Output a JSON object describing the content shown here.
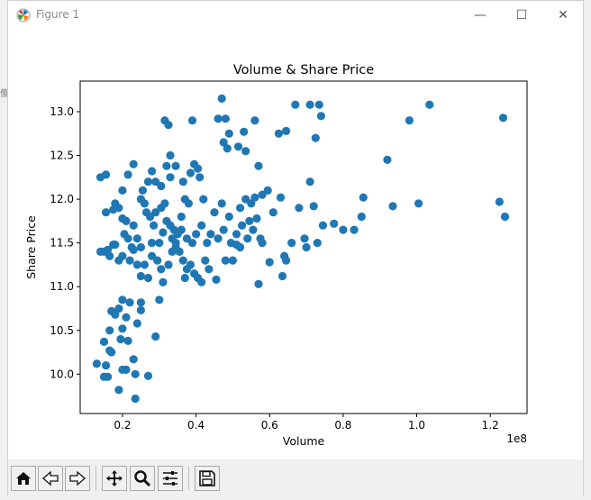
{
  "window": {
    "title": "Figure 1",
    "minimize_label": "—",
    "maximize_label": "☐",
    "close_label": "✕"
  },
  "edge_fragments": {
    "left_char": "傻"
  },
  "toolbar": {
    "buttons": [
      {
        "name": "home-button",
        "icon": "home-icon"
      },
      {
        "name": "back-button",
        "icon": "arrow-left-icon"
      },
      {
        "name": "forward-button",
        "icon": "arrow-right-icon"
      },
      {
        "name": "pan-button",
        "icon": "move-icon"
      },
      {
        "name": "zoom-button",
        "icon": "magnifier-icon"
      },
      {
        "name": "configure-subplots-button",
        "icon": "sliders-icon"
      },
      {
        "name": "save-button",
        "icon": "floppy-disk-icon"
      }
    ]
  },
  "colors": {
    "marker": "#1f77b4",
    "axes_bg": "#ffffff",
    "frame": "#000000"
  },
  "chart_data": {
    "type": "scatter",
    "title": "Volume & Share Price",
    "xlabel": "Volume",
    "ylabel": "Share Price",
    "x_offset_label": "1e8",
    "xlim": [
      8500000,
      130000000
    ],
    "ylim": [
      9.55,
      13.35
    ],
    "xticks": [
      20000000,
      40000000,
      60000000,
      80000000,
      100000000,
      120000000
    ],
    "xtick_labels": [
      "0.2",
      "0.4",
      "0.6",
      "0.8",
      "1.0",
      "1.2"
    ],
    "yticks": [
      10.0,
      10.5,
      11.0,
      11.5,
      12.0,
      12.5,
      13.0
    ],
    "ytick_labels": [
      "10.0",
      "10.5",
      "11.0",
      "11.5",
      "12.0",
      "12.5",
      "13.0"
    ],
    "grid": false,
    "points": [
      [
        13000000,
        10.12
      ],
      [
        15000000,
        9.97
      ],
      [
        16000000,
        9.97
      ],
      [
        15500000,
        10.1
      ],
      [
        15000000,
        10.37
      ],
      [
        16500000,
        10.27
      ],
      [
        17000000,
        10.25
      ],
      [
        16500000,
        10.5
      ],
      [
        17000000,
        10.72
      ],
      [
        18000000,
        10.68
      ],
      [
        19000000,
        10.75
      ],
      [
        19500000,
        10.4
      ],
      [
        19000000,
        9.82
      ],
      [
        20000000,
        10.05
      ],
      [
        21000000,
        10.05
      ],
      [
        20000000,
        10.52
      ],
      [
        21000000,
        10.65
      ],
      [
        21500000,
        10.38
      ],
      [
        22000000,
        10.82
      ],
      [
        20000000,
        10.85
      ],
      [
        23000000,
        10.17
      ],
      [
        23500000,
        10.0
      ],
      [
        23500000,
        9.72
      ],
      [
        24000000,
        10.58
      ],
      [
        25000000,
        10.82
      ],
      [
        25000000,
        10.73
      ],
      [
        27000000,
        9.98
      ],
      [
        29000000,
        10.43
      ],
      [
        25000000,
        11.12
      ],
      [
        24000000,
        11.25
      ],
      [
        22000000,
        11.3
      ],
      [
        23000000,
        11.42
      ],
      [
        20000000,
        11.35
      ],
      [
        19000000,
        11.3
      ],
      [
        18000000,
        11.48
      ],
      [
        17500000,
        11.48
      ],
      [
        16000000,
        11.42
      ],
      [
        15000000,
        11.4
      ],
      [
        16500000,
        11.35
      ],
      [
        14000000,
        11.4
      ],
      [
        20500000,
        11.6
      ],
      [
        21500000,
        11.55
      ],
      [
        22500000,
        11.45
      ],
      [
        24000000,
        11.55
      ],
      [
        25000000,
        11.45
      ],
      [
        23000000,
        11.7
      ],
      [
        21000000,
        11.75
      ],
      [
        20000000,
        11.78
      ],
      [
        19000000,
        11.9
      ],
      [
        18000000,
        11.95
      ],
      [
        17500000,
        11.88
      ],
      [
        15500000,
        11.85
      ],
      [
        14000000,
        12.25
      ],
      [
        15500000,
        12.28
      ],
      [
        20000000,
        12.1
      ],
      [
        21500000,
        12.28
      ],
      [
        23000000,
        12.4
      ],
      [
        25500000,
        12.1
      ],
      [
        25000000,
        12.0
      ],
      [
        26000000,
        11.95
      ],
      [
        27000000,
        12.2
      ],
      [
        28000000,
        12.32
      ],
      [
        29000000,
        12.2
      ],
      [
        30500000,
        12.15
      ],
      [
        32000000,
        12.38
      ],
      [
        33000000,
        12.5
      ],
      [
        33000000,
        12.25
      ],
      [
        34500000,
        12.38
      ],
      [
        31500000,
        12.9
      ],
      [
        32500000,
        12.85
      ],
      [
        26500000,
        11.85
      ],
      [
        27500000,
        11.8
      ],
      [
        28500000,
        11.7
      ],
      [
        29000000,
        11.85
      ],
      [
        30500000,
        11.9
      ],
      [
        31500000,
        11.95
      ],
      [
        32000000,
        11.75
      ],
      [
        33000000,
        11.7
      ],
      [
        34000000,
        11.65
      ],
      [
        35000000,
        11.6
      ],
      [
        36000000,
        11.8
      ],
      [
        37000000,
        12.0
      ],
      [
        38000000,
        11.95
      ],
      [
        36500000,
        12.2
      ],
      [
        38500000,
        12.3
      ],
      [
        39500000,
        12.4
      ],
      [
        40500000,
        12.35
      ],
      [
        39000000,
        12.9
      ],
      [
        41000000,
        12.25
      ],
      [
        42000000,
        12.0
      ],
      [
        28000000,
        11.35
      ],
      [
        29500000,
        11.3
      ],
      [
        30500000,
        11.2
      ],
      [
        31000000,
        11.05
      ],
      [
        32500000,
        11.25
      ],
      [
        33500000,
        11.4
      ],
      [
        34500000,
        11.45
      ],
      [
        35500000,
        11.4
      ],
      [
        36500000,
        11.3
      ],
      [
        37500000,
        11.2
      ],
      [
        37000000,
        11.1
      ],
      [
        38500000,
        11.25
      ],
      [
        39500000,
        11.15
      ],
      [
        40500000,
        11.1
      ],
      [
        41500000,
        11.05
      ],
      [
        42500000,
        11.3
      ],
      [
        43500000,
        11.2
      ],
      [
        45500000,
        11.08
      ],
      [
        30000000,
        10.85
      ],
      [
        27000000,
        11.1
      ],
      [
        26000000,
        11.25
      ],
      [
        28000000,
        11.5
      ],
      [
        30000000,
        11.5
      ],
      [
        31000000,
        11.62
      ],
      [
        33500000,
        11.55
      ],
      [
        34500000,
        11.5
      ],
      [
        36000000,
        11.65
      ],
      [
        37500000,
        11.55
      ],
      [
        39000000,
        11.5
      ],
      [
        40000000,
        11.6
      ],
      [
        41500000,
        11.7
      ],
      [
        43000000,
        11.5
      ],
      [
        44000000,
        11.6
      ],
      [
        46000000,
        11.55
      ],
      [
        47500000,
        11.65
      ],
      [
        48000000,
        11.3
      ],
      [
        49500000,
        11.5
      ],
      [
        45000000,
        11.85
      ],
      [
        47000000,
        11.95
      ],
      [
        49000000,
        11.8
      ],
      [
        51000000,
        11.6
      ],
      [
        52500000,
        11.7
      ],
      [
        52000000,
        11.9
      ],
      [
        53500000,
        12.0
      ],
      [
        55000000,
        11.95
      ],
      [
        56000000,
        12.02
      ],
      [
        54500000,
        11.75
      ],
      [
        56500000,
        11.78
      ],
      [
        57500000,
        11.55
      ],
      [
        58000000,
        11.5
      ],
      [
        57000000,
        11.03
      ],
      [
        60000000,
        11.28
      ],
      [
        63500000,
        11.12
      ],
      [
        64500000,
        11.3
      ],
      [
        66000000,
        11.5
      ],
      [
        58000000,
        12.05
      ],
      [
        59500000,
        12.1
      ],
      [
        61000000,
        11.85
      ],
      [
        63000000,
        12.02
      ],
      [
        64000000,
        11.35
      ],
      [
        52000000,
        11.45
      ],
      [
        50000000,
        11.3
      ],
      [
        51000000,
        11.48
      ],
      [
        54000000,
        11.55
      ],
      [
        55500000,
        11.65
      ],
      [
        48000000,
        12.92
      ],
      [
        49000000,
        12.75
      ],
      [
        47500000,
        12.65
      ],
      [
        48500000,
        12.58
      ],
      [
        51500000,
        12.6
      ],
      [
        53000000,
        12.77
      ],
      [
        53500000,
        12.55
      ],
      [
        57000000,
        12.38
      ],
      [
        56000000,
        12.9
      ],
      [
        46000000,
        12.92
      ],
      [
        47000000,
        13.15
      ],
      [
        62500000,
        12.75
      ],
      [
        64500000,
        12.78
      ],
      [
        67000000,
        13.08
      ],
      [
        71000000,
        13.08
      ],
      [
        72500000,
        12.7
      ],
      [
        73500000,
        13.08
      ],
      [
        74000000,
        12.95
      ],
      [
        71000000,
        12.2
      ],
      [
        72000000,
        11.92
      ],
      [
        68000000,
        11.9
      ],
      [
        69500000,
        11.55
      ],
      [
        70000000,
        11.45
      ],
      [
        73000000,
        11.5
      ],
      [
        74500000,
        11.7
      ],
      [
        77500000,
        11.72
      ],
      [
        80000000,
        11.65
      ],
      [
        83000000,
        11.65
      ],
      [
        85000000,
        11.8
      ],
      [
        85500000,
        12.02
      ],
      [
        92000000,
        12.45
      ],
      [
        93500000,
        11.92
      ],
      [
        98000000,
        12.9
      ],
      [
        100500000,
        11.95
      ],
      [
        103500000,
        13.08
      ],
      [
        122500000,
        11.97
      ],
      [
        123500000,
        12.93
      ],
      [
        124000000,
        11.8
      ]
    ]
  }
}
